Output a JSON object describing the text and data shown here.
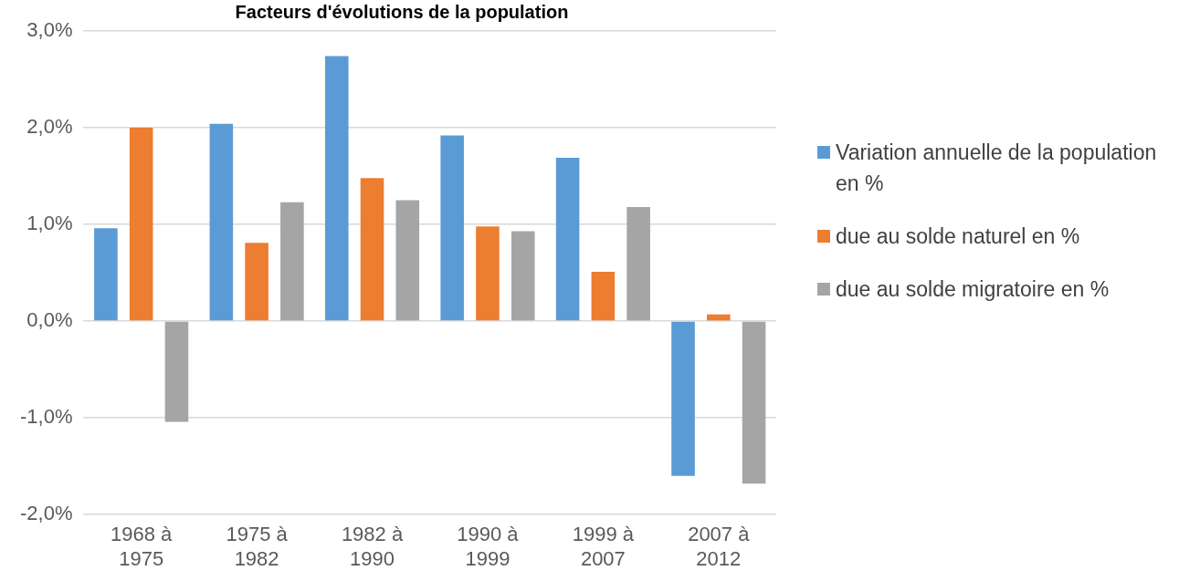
{
  "chart_data": {
    "type": "bar",
    "title": "Facteurs d'évolutions de la population",
    "categories": [
      "1968 à 1975",
      "1975 à 1982",
      "1982 à 1990",
      "1990 à 1999",
      "1999 à 2007",
      "2007 à 2012"
    ],
    "series": [
      {
        "name": "Variation annuelle de la population en %",
        "color": "#5b9bd5",
        "values": [
          0.96,
          2.04,
          2.74,
          1.92,
          1.69,
          -1.6
        ]
      },
      {
        "name": "due au solde naturel en %",
        "color": "#ed7d31",
        "values": [
          2.0,
          0.81,
          1.48,
          0.98,
          0.51,
          0.07
        ]
      },
      {
        "name": "due au solde migratoire en %",
        "color": "#a5a5a5",
        "values": [
          -1.04,
          1.23,
          1.25,
          0.93,
          1.18,
          -1.68
        ]
      }
    ],
    "ylim": [
      -2,
      3
    ],
    "yticks": [
      {
        "value": -2,
        "label": "-2,0%"
      },
      {
        "value": -1,
        "label": "-1,0%"
      },
      {
        "value": 0,
        "label": "0,0%"
      },
      {
        "value": 1,
        "label": "1,0%"
      },
      {
        "value": 2,
        "label": "2,0%"
      },
      {
        "value": 3,
        "label": "3,0%"
      }
    ],
    "grid": "y",
    "legend": "right"
  }
}
